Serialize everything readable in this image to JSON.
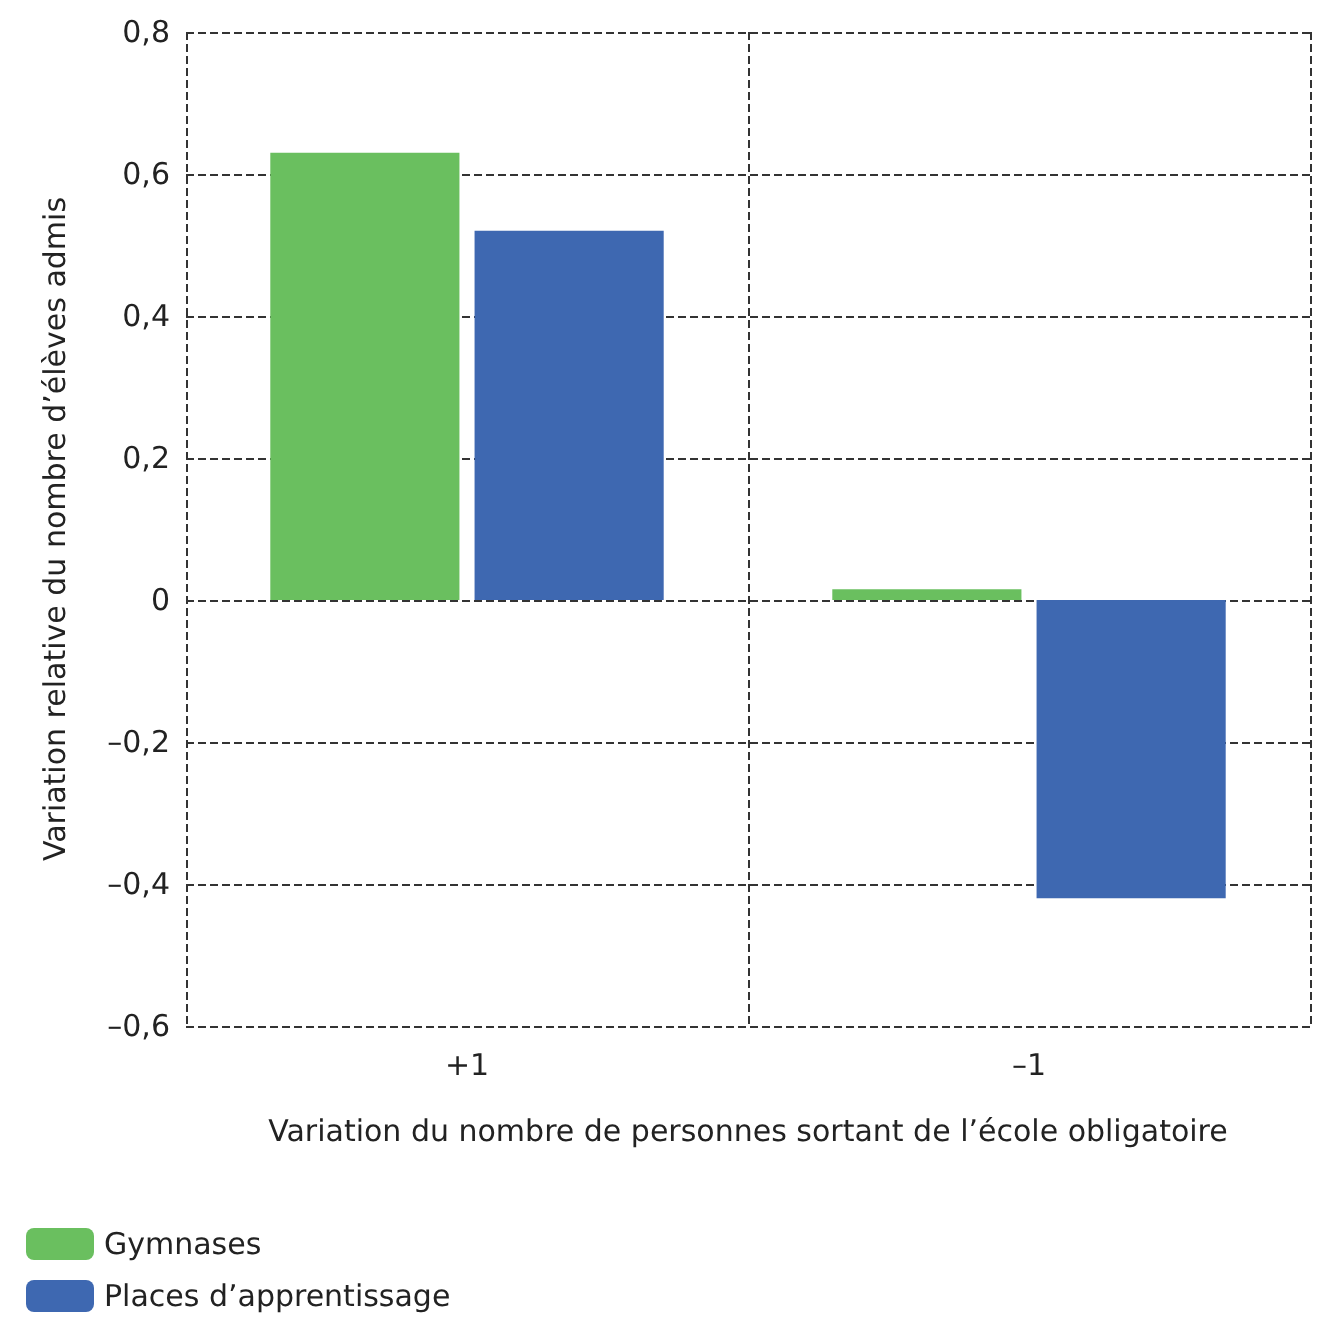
{
  "chart_data": {
    "type": "bar",
    "xlabel": "Variation du nombre de personnes sortant de l’école obligatoire",
    "ylabel": "Variation relative du nombre d’élèves admis",
    "categories": [
      "+1",
      "–1"
    ],
    "series": [
      {
        "name": "Gymnases",
        "color": "#6abf5f",
        "values": [
          0.63,
          0.015
        ]
      },
      {
        "name": "Places d’apprentissage",
        "color": "#3e68b1",
        "values": [
          0.52,
          -0.42
        ]
      }
    ],
    "ylim": [
      -0.6,
      0.8
    ],
    "yticks": [
      {
        "value": -0.6,
        "label": "–0,6"
      },
      {
        "value": -0.4,
        "label": "–0,4"
      },
      {
        "value": -0.2,
        "label": "–0,2"
      },
      0,
      {
        "value": 0.2,
        "label": "0,2"
      },
      {
        "value": 0.4,
        "label": "0,4"
      },
      {
        "value": 0.6,
        "label": "0,6"
      },
      {
        "value": 0.8,
        "label": "0,8"
      }
    ],
    "grid": true,
    "legend": "bottom left"
  }
}
